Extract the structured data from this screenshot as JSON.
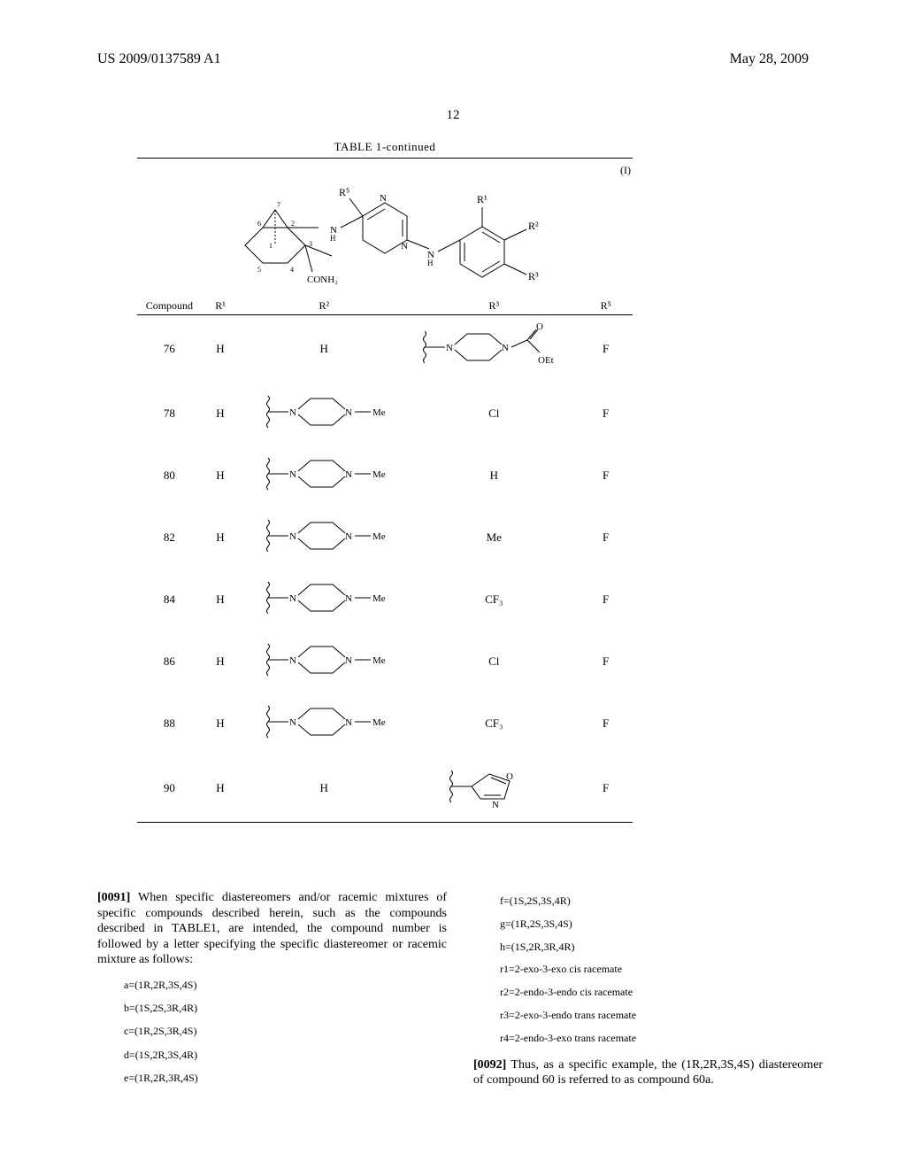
{
  "header": {
    "left": "US 2009/0137589 A1",
    "right": "May 28, 2009"
  },
  "page_number": "12",
  "table": {
    "title": "TABLE 1-continued",
    "formula_label": "(I)",
    "formula": {
      "atoms": {
        "r5": "R⁵",
        "r1": "R¹",
        "r2": "R²",
        "r3": "R³",
        "n1": "N",
        "n2": "N",
        "nh1": "N",
        "nh2": "N",
        "h1": "H",
        "h2": "H",
        "conh2": "CONH₂",
        "ring_nums": [
          "1",
          "2",
          "3",
          "4",
          "5",
          "6",
          "7"
        ]
      }
    },
    "columns": [
      "Compound",
      "R¹",
      "R²",
      "R³",
      "R⁵"
    ],
    "col_widths": [
      "72px",
      "42px",
      "190px",
      "190px",
      "60px"
    ],
    "rows": [
      {
        "compound": "76",
        "r1": "H",
        "r2_text": "H",
        "r2_struct": null,
        "r3_text": null,
        "r3_struct": "piperazine-CO-OEt",
        "r5": "F"
      },
      {
        "compound": "78",
        "r1": "H",
        "r2_text": null,
        "r2_struct": "N-Me-piperazinyl",
        "r3_text": "Cl",
        "r3_struct": null,
        "r5": "F"
      },
      {
        "compound": "80",
        "r1": "H",
        "r2_text": null,
        "r2_struct": "N-Me-piperazinyl",
        "r3_text": "H",
        "r3_struct": null,
        "r5": "F"
      },
      {
        "compound": "82",
        "r1": "H",
        "r2_text": null,
        "r2_struct": "N-Me-piperazinyl",
        "r3_text": "Me",
        "r3_struct": null,
        "r5": "F"
      },
      {
        "compound": "84",
        "r1": "H",
        "r2_text": null,
        "r2_struct": "N-Me-piperazinyl",
        "r3_text": "CF₃",
        "r3_struct": null,
        "r5": "F"
      },
      {
        "compound": "86",
        "r1": "H",
        "r2_text": null,
        "r2_struct": "N-Me-piperazinyl",
        "r3_text": "Cl",
        "r3_struct": null,
        "r5": "F"
      },
      {
        "compound": "88",
        "r1": "H",
        "r2_text": null,
        "r2_struct": "N-Me-piperazinyl",
        "r3_text": "CF₃",
        "r3_struct": null,
        "r5": "F"
      },
      {
        "compound": "90",
        "r1": "H",
        "r2_text": "H",
        "r2_struct": null,
        "r3_text": null,
        "r3_struct": "oxazolyl",
        "r5": "F"
      }
    ]
  },
  "body": {
    "para91_num": "[0091]",
    "para91": "   When specific diastereomers and/or racemic mixtures of specific compounds described herein, such as the compounds described in TABLE1, are intended, the compound number is followed by a letter specifying the specific diastereomer or racemic mixture as follows:",
    "list_left": [
      "a=(1R,2R,3S,4S)",
      "b=(1S,2S,3R,4R)",
      "c=(1R,2S,3R,4S)",
      "d=(1S,2R,3S,4R)",
      "e=(1R,2R,3R,4S)"
    ],
    "list_right": [
      "f=(1S,2S,3S,4R)",
      "g=(1R,2S,3S,4S)",
      "h=(1S,2R,3R,4R)",
      "r1=2-exo-3-exo cis racemate",
      "r2=2-endo-3-endo cis racemate",
      "r3=2-exo-3-endo trans racemate",
      "r4=2-endo-3-exo trans racemate"
    ],
    "para92_num": "[0092]",
    "para92": "   Thus, as a specific example, the (1R,2R,3S,4S) diastereomer of compound 60 is referred to as compound 60a."
  }
}
